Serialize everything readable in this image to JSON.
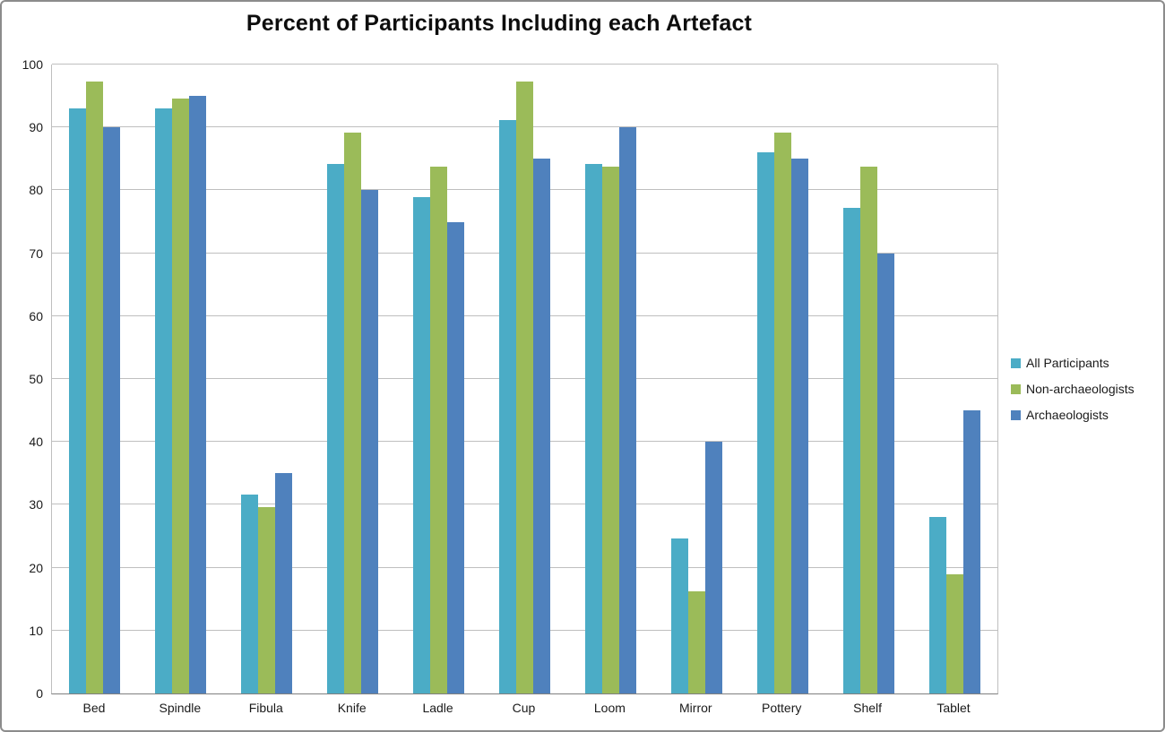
{
  "chart_data": {
    "type": "bar",
    "title": "Percent of Participants Including each Artefact",
    "categories": [
      "Bed",
      "Spindle",
      "Fibula",
      "Knife",
      "Ladle",
      "Cup",
      "Loom",
      "Mirror",
      "Pottery",
      "Shelf",
      "Tablet"
    ],
    "series": [
      {
        "name": "All Participants",
        "color": "#4BACC6",
        "values": [
          93,
          93,
          31.6,
          84.2,
          78.9,
          91.2,
          84.2,
          24.6,
          86,
          77.2,
          28.1
        ]
      },
      {
        "name": "Non-archaeologists",
        "color": "#9BBB59",
        "values": [
          97.3,
          94.6,
          29.7,
          89.2,
          83.8,
          97.3,
          83.8,
          16.2,
          89.2,
          83.8,
          18.9
        ]
      },
      {
        "name": "Archaeologists",
        "color": "#4F81BD",
        "values": [
          90,
          95,
          35,
          80,
          75,
          85,
          90,
          40,
          85,
          70,
          45
        ]
      }
    ],
    "xlabel": "",
    "ylabel": "",
    "ylim": [
      0,
      100
    ],
    "yticks": [
      0,
      10,
      20,
      30,
      40,
      50,
      60,
      70,
      80,
      90,
      100
    ],
    "grid": true,
    "gridline_color": "#bfbfbf",
    "legend_position": "right"
  }
}
